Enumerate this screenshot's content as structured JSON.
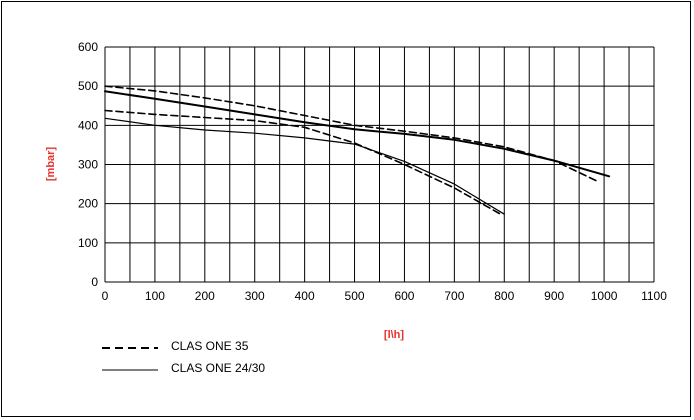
{
  "chart_data": {
    "type": "line",
    "xlabel": "[l\\h]",
    "ylabel": "[mbar]",
    "xlim": [
      0,
      1100
    ],
    "ylim": [
      0,
      600
    ],
    "x_ticks": [
      0,
      100,
      200,
      300,
      400,
      500,
      600,
      700,
      800,
      900,
      1000,
      1100
    ],
    "y_ticks": [
      0,
      100,
      200,
      300,
      400,
      500,
      600
    ],
    "grid": true,
    "legend_position": "bottom-left",
    "label_color": "#e8322e",
    "series": [
      {
        "name": "CLAS ONE 35",
        "style": "dashed",
        "curves": [
          [
            [
              0,
              500
            ],
            [
              100,
              488
            ],
            [
              200,
              470
            ],
            [
              300,
              450
            ],
            [
              400,
              425
            ],
            [
              500,
              400
            ],
            [
              600,
              385
            ],
            [
              700,
              368
            ],
            [
              800,
              345
            ],
            [
              900,
              310
            ],
            [
              990,
              255
            ]
          ],
          [
            [
              0,
              438
            ],
            [
              100,
              428
            ],
            [
              200,
              420
            ],
            [
              300,
              412
            ],
            [
              400,
              395
            ],
            [
              500,
              355
            ],
            [
              600,
              300
            ],
            [
              700,
              240
            ],
            [
              790,
              175
            ]
          ]
        ]
      },
      {
        "name": "CLAS ONE 24/30",
        "style": "solid",
        "curves": [
          [
            [
              0,
              487
            ],
            [
              100,
              468
            ],
            [
              200,
              448
            ],
            [
              300,
              428
            ],
            [
              400,
              408
            ],
            [
              500,
              390
            ],
            [
              600,
              378
            ],
            [
              700,
              363
            ],
            [
              800,
              340
            ],
            [
              900,
              310
            ],
            [
              1010,
              270
            ]
          ],
          [
            [
              0,
              418
            ],
            [
              100,
              400
            ],
            [
              200,
              388
            ],
            [
              300,
              380
            ],
            [
              400,
              368
            ],
            [
              500,
              352
            ],
            [
              600,
              308
            ],
            [
              700,
              250
            ],
            [
              800,
              173
            ]
          ]
        ]
      }
    ]
  }
}
